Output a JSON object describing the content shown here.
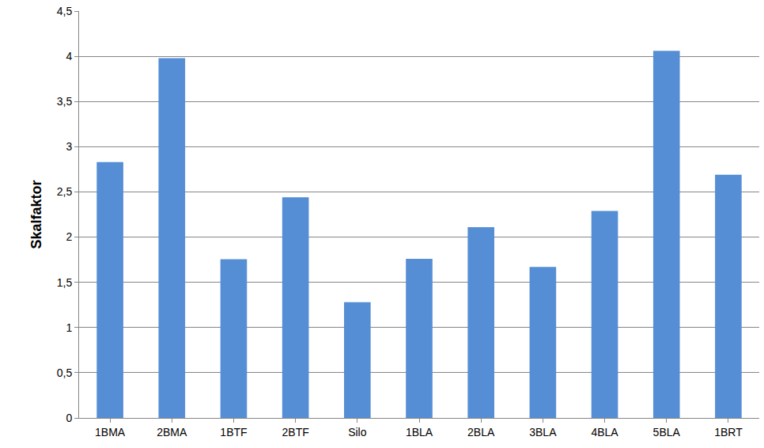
{
  "chart_data": {
    "type": "bar",
    "y_label": "Skalfaktor",
    "categories": [
      "1BMA",
      "2BMA",
      "1BTF",
      "2BTF",
      "Silo",
      "1BLA",
      "2BLA",
      "3BLA",
      "4BLA",
      "5BLA",
      "1BRT"
    ],
    "values": [
      2.83,
      3.98,
      1.755,
      2.44,
      1.28,
      1.76,
      2.11,
      1.67,
      2.29,
      4.06,
      2.69
    ],
    "color": "#558ed5",
    "ylim": [
      0,
      4.5
    ],
    "yticks": [
      0,
      {
        "value": 0.5,
        "label": "0,5"
      },
      1,
      {
        "value": 1.5,
        "label": "1,5"
      },
      2,
      {
        "value": 2.5,
        "label": "2,5"
      },
      3,
      {
        "value": 3.5,
        "label": "3,5"
      },
      4,
      {
        "value": 4.5,
        "label": "4,5"
      }
    ],
    "grid": true
  }
}
